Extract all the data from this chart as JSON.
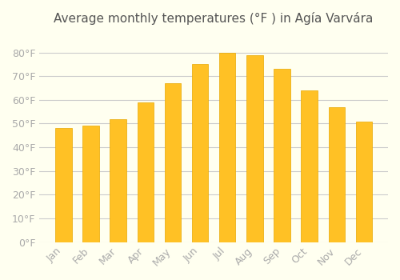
{
  "title": "Average monthly temperatures (°F ) in Agía Varvára",
  "months": [
    "Jan",
    "Feb",
    "Mar",
    "Apr",
    "May",
    "Jun",
    "Jul",
    "Aug",
    "Sep",
    "Oct",
    "Nov",
    "Dec"
  ],
  "values": [
    48,
    49,
    52,
    59,
    67,
    75,
    80,
    79,
    73,
    64,
    57,
    51
  ],
  "bar_color": "#FFC125",
  "bar_edge_color": "#E8A800",
  "background_color": "#FFFFF0",
  "grid_color": "#cccccc",
  "yticks": [
    0,
    10,
    20,
    30,
    40,
    50,
    60,
    70,
    80
  ],
  "ylim": [
    0,
    88
  ],
  "title_fontsize": 11,
  "tick_fontsize": 9,
  "tick_color": "#aaaaaa",
  "text_color": "#aaaaaa"
}
